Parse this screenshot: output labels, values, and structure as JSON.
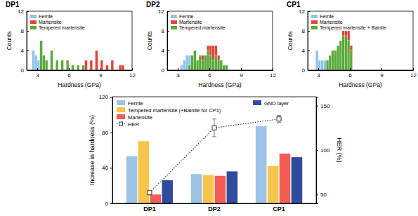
{
  "chart_data": [
    {
      "type": "histogram",
      "title": "DP1",
      "x_label": "Hardness (GPa)",
      "y_label": "Counts",
      "bins": [
        2.5,
        2.75,
        3,
        3.25,
        3.5,
        3.75,
        4,
        4.25,
        4.5,
        4.75,
        5,
        5.25,
        5.5,
        5.75,
        6,
        6.25,
        6.5,
        6.75,
        7,
        7.25,
        7.5,
        7.75,
        8,
        8.25,
        8.5,
        8.75,
        9,
        9.25,
        9.5,
        9.75,
        10,
        10.25,
        10.5,
        10.75,
        11,
        11.25,
        11.5
      ],
      "series": [
        {
          "name": "Ferrite",
          "color": "#8ec3ea",
          "values": [
            4,
            3,
            2,
            0,
            0,
            0,
            0,
            0,
            0,
            0,
            0,
            0,
            0,
            0,
            0,
            0,
            0,
            0,
            0,
            0,
            0,
            0,
            0,
            0,
            0,
            0,
            0,
            0,
            0,
            0,
            0,
            0,
            0,
            0,
            0,
            0
          ]
        },
        {
          "name": "Martensite",
          "color": "#e8423a",
          "values": [
            0,
            0,
            0,
            0,
            0,
            0,
            0,
            0,
            0,
            0,
            0,
            0,
            0,
            0,
            0,
            0,
            0,
            0,
            0,
            0,
            2,
            0,
            2,
            0,
            4,
            0,
            2,
            0,
            1,
            0,
            2,
            0,
            0,
            1,
            1,
            0
          ]
        },
        {
          "name": "Tempered martensite",
          "color": "#5aaa3a",
          "values": [
            0,
            0,
            0,
            6,
            3,
            2,
            0,
            4,
            0,
            2,
            0,
            2,
            0,
            2,
            0,
            1,
            0,
            1,
            0,
            1,
            0,
            0,
            0,
            0,
            0,
            0,
            0,
            0,
            0,
            0,
            0,
            0,
            0,
            0,
            0,
            0
          ]
        }
      ],
      "stacked": true,
      "legend": "upper left",
      "xlim": [
        2,
        12
      ],
      "xticks": [
        3,
        6,
        9,
        12
      ],
      "ylim": [
        0,
        12
      ],
      "yticks": [
        0,
        4,
        8,
        12
      ]
    },
    {
      "type": "histogram",
      "title": "DP2",
      "x_label": "Hardness (GPa)",
      "y_label": "Counts",
      "bins": [
        3.25,
        3.5,
        3.75,
        4,
        4.25,
        4.5,
        4.75,
        5,
        5.25,
        5.5,
        5.75,
        6,
        6.25,
        6.5,
        6.75,
        7,
        7.25,
        7.5,
        7.75
      ],
      "series": [
        {
          "name": "Ferrite",
          "color": "#8ec3ea",
          "values": [
            1,
            2,
            3,
            2,
            0,
            0,
            0,
            0,
            0,
            0,
            0,
            0,
            0,
            0,
            0,
            0,
            0,
            0
          ]
        },
        {
          "name": "Martensite",
          "color": "#e8423a",
          "values": [
            0,
            0,
            0,
            0,
            0,
            0,
            0,
            0,
            1,
            0,
            1,
            2,
            3,
            2,
            1,
            0,
            0,
            0
          ]
        },
        {
          "name": "Tempered martensite",
          "color": "#5aaa3a",
          "values": [
            0,
            0,
            0,
            1,
            3,
            4,
            2,
            3,
            2,
            3,
            4,
            3,
            2,
            3,
            2,
            2,
            1,
            1
          ]
        }
      ],
      "stacked": true,
      "legend": "upper left",
      "xlim": [
        2,
        12
      ],
      "xticks": [
        3,
        6,
        9,
        12
      ],
      "ylim": [
        0,
        12
      ],
      "yticks": [
        0,
        4,
        8,
        12
      ]
    },
    {
      "type": "histogram",
      "title": "CP1",
      "x_label": "Hardness (GPa)",
      "y_label": "Counts",
      "bins": [
        2.75,
        3,
        3.25,
        3.5,
        3.75,
        4,
        4.25,
        4.5,
        4.75,
        5,
        5.25,
        5.5,
        5.75,
        6,
        6.25
      ],
      "series": [
        {
          "name": "Ferrite",
          "color": "#8ec3ea",
          "values": [
            4,
            2,
            2,
            2,
            0,
            0,
            0,
            0,
            0,
            0,
            0,
            0,
            0,
            0
          ]
        },
        {
          "name": "Martensite",
          "color": "#e8423a",
          "values": [
            0,
            0,
            0,
            0,
            0,
            0,
            0,
            0,
            0,
            0,
            1,
            1,
            2,
            1
          ]
        },
        {
          "name": "Tempered martensite + Bainite",
          "color": "#5aaa3a",
          "values": [
            0,
            0,
            0,
            0,
            2,
            3,
            4,
            4,
            5,
            6,
            7,
            7,
            6,
            4
          ]
        }
      ],
      "stacked": true,
      "legend": "upper left",
      "xlim": [
        2,
        12
      ],
      "xticks": [
        3,
        6,
        9,
        12
      ],
      "ylim": [
        0,
        12
      ],
      "yticks": [
        0,
        4,
        8,
        12
      ]
    },
    {
      "type": "bar",
      "categories": [
        "DP1",
        "DP2",
        "CP1"
      ],
      "y_label": "Increase in hardness (%)",
      "y2_label": "HER (%)",
      "series": [
        {
          "name": "Ferrite",
          "color": "#9dc3e6",
          "values": [
            53,
            33,
            87
          ]
        },
        {
          "name": "Tempered martensite (+Bainite for CP1)",
          "color": "#f8c54c",
          "values": [
            70,
            32,
            42
          ]
        },
        {
          "name": "Martensite",
          "color": "#f25c54",
          "values": [
            10,
            31,
            56
          ]
        },
        {
          "name": "GND layer",
          "color": "#2f4b9e",
          "values": [
            26,
            36,
            52
          ]
        },
        {
          "name": "HER",
          "type": "line",
          "axis": "y2",
          "color": "#333333",
          "marker": "square",
          "line_style": "dotted",
          "values": [
            52,
            125,
            135
          ],
          "errors": [
            2,
            10,
            4
          ]
        }
      ],
      "legend": "upper left",
      "ylim": [
        0,
        120
      ],
      "yticks": [
        0,
        40,
        80,
        120
      ],
      "y2lim": [
        40,
        160
      ],
      "y2ticks": [
        50,
        100,
        150
      ]
    }
  ]
}
